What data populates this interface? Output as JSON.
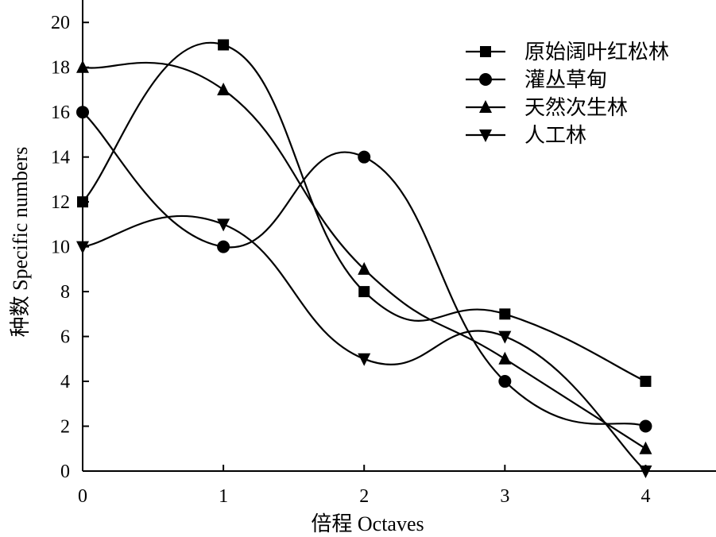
{
  "chart_data": {
    "type": "line",
    "xlabel": "倍程 Octaves",
    "ylabel": "种数 Specific numbers",
    "xlim": [
      0,
      4.5
    ],
    "ylim": [
      0,
      21
    ],
    "x_ticks": [
      0,
      1,
      2,
      3,
      4
    ],
    "y_ticks": [
      0,
      2,
      4,
      6,
      8,
      10,
      12,
      14,
      16,
      18,
      20
    ],
    "legend_position": "top-right",
    "grid": false,
    "smooth": true,
    "series": [
      {
        "name": "原始阔叶红松林",
        "marker": "square",
        "x": [
          0,
          1,
          2,
          3,
          4
        ],
        "values": [
          12,
          19,
          8,
          7,
          4
        ]
      },
      {
        "name": "灌丛草甸",
        "marker": "circle",
        "x": [
          0,
          1,
          2,
          3,
          4
        ],
        "values": [
          16,
          10,
          14,
          4,
          2
        ]
      },
      {
        "name": "天然次生林",
        "marker": "triangle-up",
        "x": [
          0,
          1,
          2,
          3,
          4
        ],
        "values": [
          18,
          17,
          9,
          5,
          1
        ]
      },
      {
        "name": "人工林",
        "marker": "triangle-down",
        "x": [
          0,
          1,
          2,
          3,
          4
        ],
        "values": [
          10,
          11,
          5,
          6,
          0
        ]
      }
    ]
  }
}
